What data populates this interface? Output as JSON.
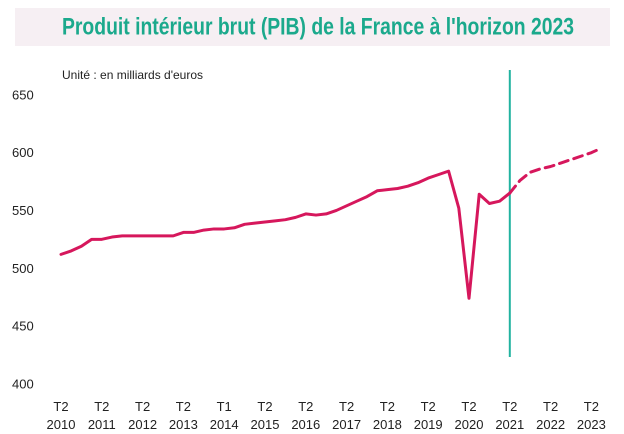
{
  "chart_data": {
    "type": "line",
    "title": "Produit intérieur brut (PIB) de la France à l'horizon 2023",
    "unit_label": "Unité : en milliards d'euros",
    "categories": [
      "T2\n2010",
      null,
      null,
      null,
      "T2\n2011",
      null,
      null,
      null,
      "T2\n2012",
      null,
      null,
      null,
      "T2\n2013",
      null,
      null,
      null,
      "T1\n2014",
      null,
      null,
      null,
      "T2\n2015",
      null,
      null,
      null,
      "T2\n2016",
      null,
      null,
      null,
      "T2\n2017",
      null,
      null,
      null,
      "T2\n2018",
      null,
      null,
      null,
      "T2\n2019",
      null,
      null,
      null,
      "T2\n2020",
      null,
      null,
      null,
      "T2\n2021",
      null,
      null,
      null,
      "T2\n2022",
      null,
      null,
      null,
      "T2\n2023",
      null
    ],
    "series": [
      {
        "color": "#d6175c",
        "dashed": false,
        "values": [
          513,
          516,
          520,
          526,
          526,
          528,
          529,
          529,
          529,
          529,
          529,
          529,
          532,
          532,
          534,
          535,
          535,
          536,
          539,
          540,
          541,
          542,
          543,
          545,
          548,
          547,
          548,
          551,
          555,
          559,
          563,
          568,
          569,
          570,
          572,
          575,
          579,
          582,
          585,
          553,
          475,
          565,
          557,
          559,
          566,
          null,
          null,
          null,
          null,
          null,
          null,
          null,
          null,
          null
        ]
      },
      {
        "color": "#d6175c",
        "dashed": true,
        "values": [
          null,
          null,
          null,
          null,
          null,
          null,
          null,
          null,
          null,
          null,
          null,
          null,
          null,
          null,
          null,
          null,
          null,
          null,
          null,
          null,
          null,
          null,
          null,
          null,
          null,
          null,
          null,
          null,
          null,
          null,
          null,
          null,
          null,
          null,
          null,
          null,
          null,
          null,
          null,
          null,
          null,
          null,
          null,
          null,
          566,
          577,
          584,
          587,
          589,
          592,
          595,
          598,
          601,
          605
        ]
      }
    ],
    "ylim": [
      400,
      650
    ],
    "yticks": [
      400,
      450,
      500,
      550,
      600,
      650
    ],
    "marker_color": "#22b3a0",
    "title_color": "#1ba98c",
    "grid": false
  }
}
